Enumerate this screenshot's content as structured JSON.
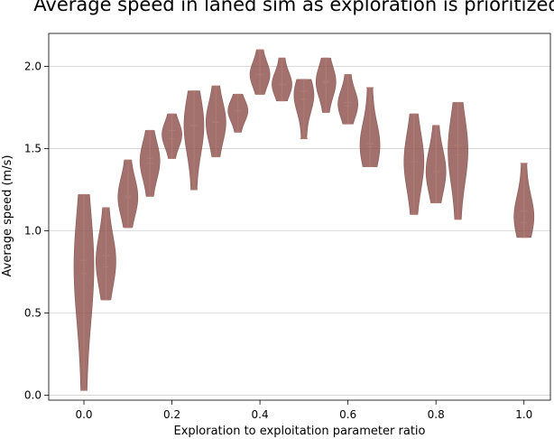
{
  "chart_data": {
    "type": "violin",
    "title": "Average speed in laned sim as exploration is prioritized",
    "xlabel": "Exploration to exploitation parameter ratio",
    "ylabel": "Average speed (m/s)",
    "xlim": [
      -0.08,
      1.06
    ],
    "ylim": [
      -0.03,
      2.2
    ],
    "xticks": [
      0.0,
      0.2,
      0.4,
      0.6,
      0.8,
      1.0
    ],
    "xtick_labels": [
      "0.0",
      "0.2",
      "0.4",
      "0.6",
      "0.8",
      "1.0"
    ],
    "yticks": [
      0.0,
      0.5,
      1.0,
      1.5,
      2.0
    ],
    "ytick_labels": [
      "0.0",
      "0.5",
      "1.0",
      "1.5",
      "2.0"
    ],
    "grid": "horizontal",
    "colors": {
      "violin_fill": "#8a4a45",
      "violin_edge": "#6e2f2b",
      "stat_line": "#b07a74"
    },
    "series": [
      {
        "x": 0.0,
        "min": 0.03,
        "max": 1.22,
        "mean": 0.82,
        "median": 0.74
      },
      {
        "x": 0.05,
        "min": 0.58,
        "max": 1.14,
        "mean": 0.85,
        "median": 0.78
      },
      {
        "x": 0.1,
        "min": 1.02,
        "max": 1.43,
        "mean": 1.21,
        "median": 1.2
      },
      {
        "x": 0.15,
        "min": 1.21,
        "max": 1.61,
        "mean": 1.41,
        "median": 1.44
      },
      {
        "x": 0.2,
        "min": 1.44,
        "max": 1.71,
        "mean": 1.61,
        "median": 1.56
      },
      {
        "x": 0.25,
        "min": 1.25,
        "max": 1.85,
        "mean": 1.64,
        "median": 1.64
      },
      {
        "x": 0.3,
        "min": 1.45,
        "max": 1.88,
        "mean": 1.66,
        "median": 1.66
      },
      {
        "x": 0.35,
        "min": 1.6,
        "max": 1.83,
        "mean": 1.73,
        "median": 1.73
      },
      {
        "x": 0.4,
        "min": 1.83,
        "max": 2.1,
        "mean": 1.95,
        "median": 1.95
      },
      {
        "x": 0.45,
        "min": 1.79,
        "max": 2.05,
        "mean": 1.89,
        "median": 1.89
      },
      {
        "x": 0.5,
        "min": 1.56,
        "max": 1.92,
        "mean": 1.85,
        "median": 1.8
      },
      {
        "x": 0.55,
        "min": 1.72,
        "max": 2.05,
        "mean": 1.91,
        "median": 1.9
      },
      {
        "x": 0.6,
        "min": 1.65,
        "max": 1.95,
        "mean": 1.78,
        "median": 1.76
      },
      {
        "x": 0.65,
        "min": 1.39,
        "max": 1.87,
        "mean": 1.53,
        "median": 1.51
      },
      {
        "x": 0.75,
        "min": 1.1,
        "max": 1.71,
        "mean": 1.42,
        "median": 1.42
      },
      {
        "x": 0.8,
        "min": 1.17,
        "max": 1.64,
        "mean": 1.36,
        "median": 1.36
      },
      {
        "x": 0.85,
        "min": 1.07,
        "max": 1.78,
        "mean": 1.52,
        "median": 1.46
      },
      {
        "x": 1.0,
        "min": 0.96,
        "max": 1.41,
        "mean": 1.12,
        "median": 1.05
      }
    ]
  }
}
